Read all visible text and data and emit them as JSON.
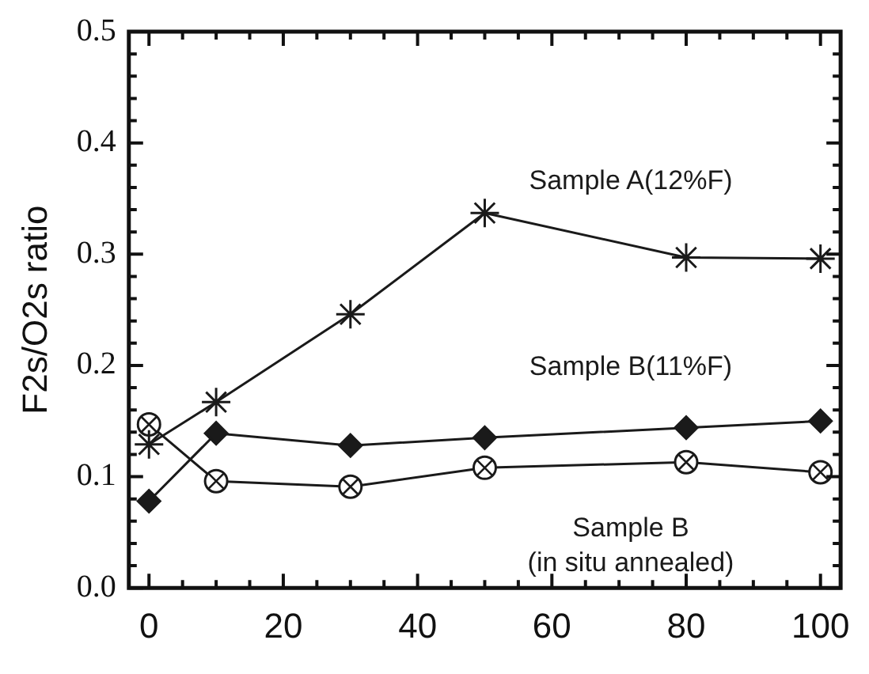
{
  "chart_data": {
    "type": "line",
    "ylabel": "F2s/O2s ratio",
    "x": [
      0,
      10,
      30,
      50,
      80,
      100
    ],
    "series": [
      {
        "name": "Sample A(12%F)",
        "color": "#1a1a1a",
        "marker": "cross",
        "values": [
          0.129,
          0.167,
          0.246,
          0.337,
          0.297,
          0.296
        ]
      },
      {
        "name": "Sample B(11%F)",
        "color": "#1a1a1a",
        "marker": "diamond",
        "values": [
          0.078,
          0.139,
          0.128,
          0.135,
          0.144,
          0.15
        ]
      },
      {
        "name": "Sample B\n(in situ annealed)",
        "color": "#1a1a1a",
        "marker": "circle",
        "values": [
          0.147,
          0.096,
          0.091,
          0.108,
          0.113,
          0.104
        ]
      }
    ],
    "xlim": [
      -3,
      103
    ],
    "xticks": [
      0,
      20,
      40,
      60,
      80,
      100
    ],
    "ylim": [
      0,
      0.5
    ],
    "yticks": [
      {
        "value": 0,
        "label": "0.0"
      },
      {
        "value": 0.1,
        "label": "0.1"
      },
      {
        "value": 0.2,
        "label": "0.2"
      },
      {
        "value": 0.3,
        "label": "0.3"
      },
      {
        "value": 0.4,
        "label": "0.4"
      },
      {
        "value": 0.5,
        "label": "0.5"
      }
    ],
    "grid": false,
    "legend": false
  }
}
